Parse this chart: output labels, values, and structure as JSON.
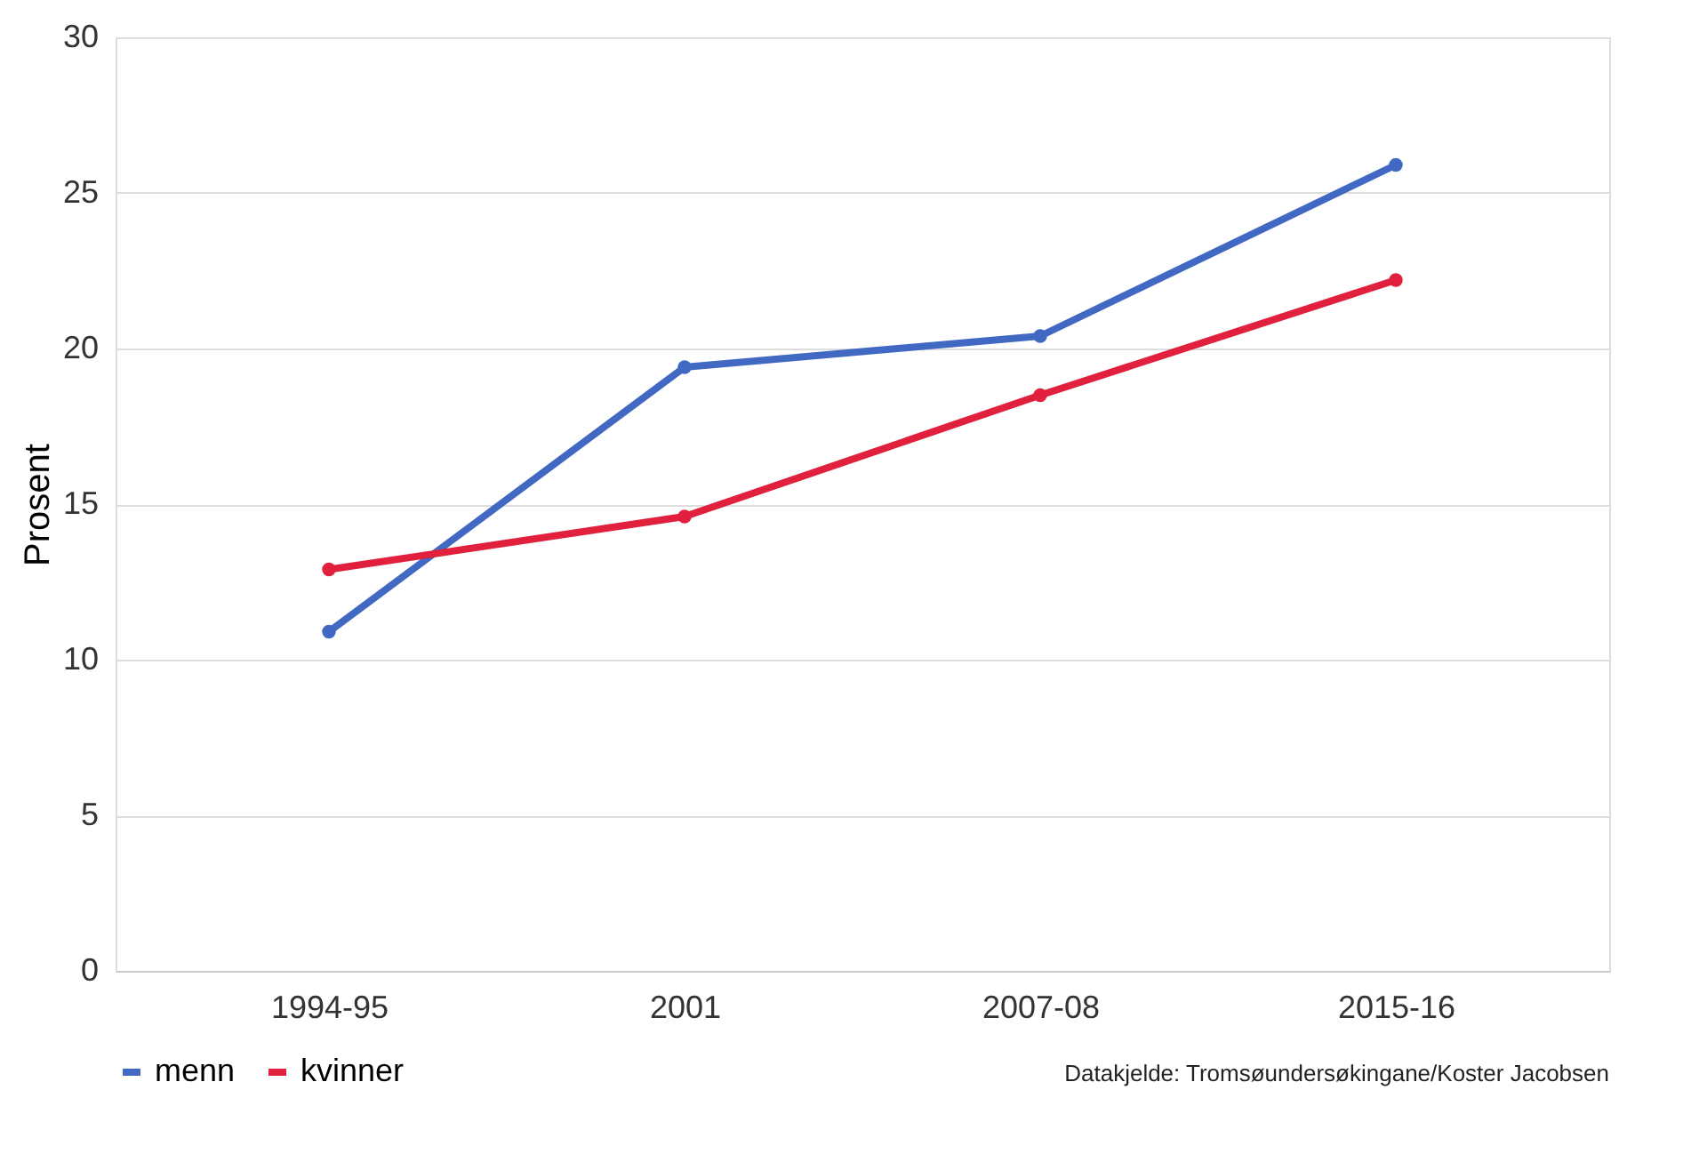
{
  "chart_data": {
    "type": "line",
    "ylabel": "Prosent",
    "categories": [
      "1994-95",
      "2001",
      "2007-08",
      "2015-16"
    ],
    "series": [
      {
        "name": "menn",
        "color": "#4169c4",
        "values": [
          10.9,
          19.4,
          20.4,
          25.9
        ]
      },
      {
        "name": "kvinner",
        "color": "#e0203c",
        "values": [
          12.9,
          14.6,
          18.5,
          22.2
        ]
      }
    ],
    "ylim": [
      0,
      30
    ],
    "yticks": [
      0,
      5,
      10,
      15,
      20,
      25,
      30
    ],
    "grid": "y",
    "legend": "bottom",
    "marker": "circle",
    "line_style": "solid",
    "annotations": [
      "Datakjelde: Tromsøundersøkingane/Koster Jacobsen"
    ]
  }
}
